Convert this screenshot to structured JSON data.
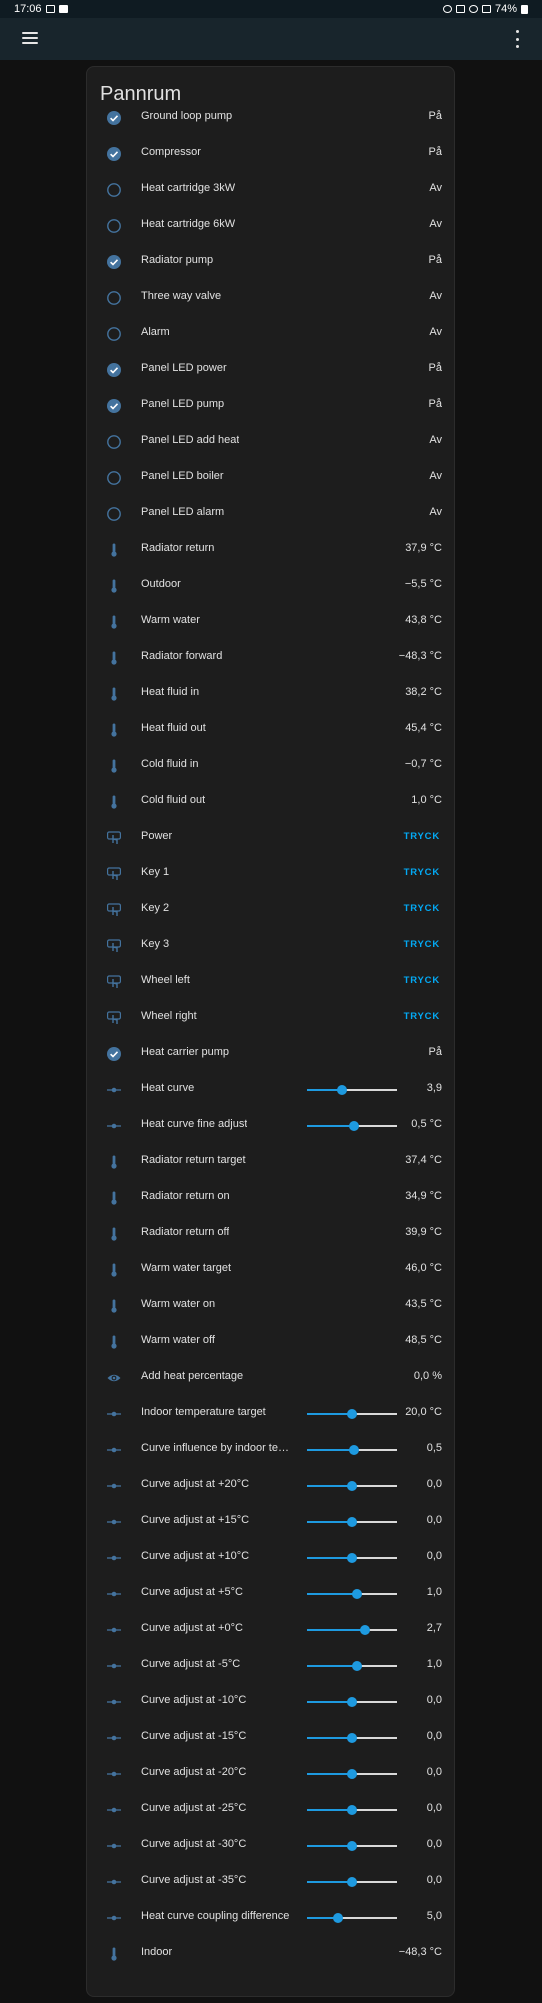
{
  "status": {
    "time": "17:06",
    "battery": "74%"
  },
  "card": {
    "title": "Pannrum"
  },
  "colors": {
    "accent": "#03a9f4",
    "icon": "#44739e",
    "background": "#111111",
    "card": "#1d1d1d"
  },
  "rows": [
    {
      "type": "toggle",
      "icon": "check-circle-icon",
      "on": true,
      "name": "Ground loop pump",
      "value": "På"
    },
    {
      "type": "toggle",
      "icon": "check-circle-icon",
      "on": true,
      "name": "Compressor",
      "value": "På"
    },
    {
      "type": "toggle",
      "icon": "circle-outline-icon",
      "on": false,
      "name": "Heat cartridge 3kW",
      "value": "Av"
    },
    {
      "type": "toggle",
      "icon": "circle-outline-icon",
      "on": false,
      "name": "Heat cartridge 6kW",
      "value": "Av"
    },
    {
      "type": "toggle",
      "icon": "check-circle-icon",
      "on": true,
      "name": "Radiator pump",
      "value": "På"
    },
    {
      "type": "toggle",
      "icon": "circle-outline-icon",
      "on": false,
      "name": "Three way valve",
      "value": "Av"
    },
    {
      "type": "toggle",
      "icon": "circle-outline-icon",
      "on": false,
      "name": "Alarm",
      "value": "Av"
    },
    {
      "type": "toggle",
      "icon": "check-circle-icon",
      "on": true,
      "name": "Panel LED power",
      "value": "På"
    },
    {
      "type": "toggle",
      "icon": "check-circle-icon",
      "on": true,
      "name": "Panel LED pump",
      "value": "På"
    },
    {
      "type": "toggle",
      "icon": "circle-outline-icon",
      "on": false,
      "name": "Panel LED add heat",
      "value": "Av"
    },
    {
      "type": "toggle",
      "icon": "circle-outline-icon",
      "on": false,
      "name": "Panel LED boiler",
      "value": "Av"
    },
    {
      "type": "toggle",
      "icon": "circle-outline-icon",
      "on": false,
      "name": "Panel LED alarm",
      "value": "Av"
    },
    {
      "type": "sensor",
      "icon": "thermometer-icon",
      "name": "Radiator return",
      "value": "37,9 °C"
    },
    {
      "type": "sensor",
      "icon": "thermometer-icon",
      "name": "Outdoor",
      "value": "−5,5 °C"
    },
    {
      "type": "sensor",
      "icon": "thermometer-icon",
      "name": "Warm water",
      "value": "43,8 °C"
    },
    {
      "type": "sensor",
      "icon": "thermometer-icon",
      "name": "Radiator forward",
      "value": "−48,3 °C"
    },
    {
      "type": "sensor",
      "icon": "thermometer-icon",
      "name": "Heat fluid in",
      "value": "38,2 °C"
    },
    {
      "type": "sensor",
      "icon": "thermometer-icon",
      "name": "Heat fluid out",
      "value": "45,4 °C"
    },
    {
      "type": "sensor",
      "icon": "thermometer-icon",
      "name": "Cold fluid in",
      "value": "−0,7 °C"
    },
    {
      "type": "sensor",
      "icon": "thermometer-icon",
      "name": "Cold fluid out",
      "value": "1,0 °C"
    },
    {
      "type": "button",
      "icon": "gesture-tap-button-icon",
      "name": "Power",
      "value": "TRYCK"
    },
    {
      "type": "button",
      "icon": "gesture-tap-button-icon",
      "name": "Key 1",
      "value": "TRYCK"
    },
    {
      "type": "button",
      "icon": "gesture-tap-button-icon",
      "name": "Key 2",
      "value": "TRYCK"
    },
    {
      "type": "button",
      "icon": "gesture-tap-button-icon",
      "name": "Key 3",
      "value": "TRYCK"
    },
    {
      "type": "button",
      "icon": "gesture-tap-button-icon",
      "name": "Wheel left",
      "value": "TRYCK"
    },
    {
      "type": "button",
      "icon": "gesture-tap-button-icon",
      "name": "Wheel right",
      "value": "TRYCK"
    },
    {
      "type": "toggle",
      "icon": "check-circle-icon",
      "on": true,
      "name": "Heat carrier pump",
      "value": "På"
    },
    {
      "type": "slider",
      "icon": "ray-vertex-icon",
      "name": "Heat curve",
      "value": "3,9",
      "level": 0.39
    },
    {
      "type": "slider",
      "icon": "ray-vertex-icon",
      "name": "Heat curve fine adjust",
      "value": "0,5 °C",
      "level": 0.52
    },
    {
      "type": "sensor",
      "icon": "thermometer-icon",
      "name": "Radiator return target",
      "value": "37,4 °C"
    },
    {
      "type": "sensor",
      "icon": "thermometer-icon",
      "name": "Radiator return on",
      "value": "34,9 °C"
    },
    {
      "type": "sensor",
      "icon": "thermometer-icon",
      "name": "Radiator return off",
      "value": "39,9 °C"
    },
    {
      "type": "sensor",
      "icon": "thermometer-icon",
      "name": "Warm water target",
      "value": "46,0 °C"
    },
    {
      "type": "sensor",
      "icon": "thermometer-icon",
      "name": "Warm water on",
      "value": "43,5 °C"
    },
    {
      "type": "sensor",
      "icon": "thermometer-icon",
      "name": "Warm water off",
      "value": "48,5 °C"
    },
    {
      "type": "sensor",
      "icon": "eye-icon",
      "name": "Add heat percentage",
      "value": "0,0 %"
    },
    {
      "type": "slider",
      "icon": "ray-vertex-icon",
      "name": "Indoor temperature target",
      "value": "20,0 °C",
      "level": 0.5
    },
    {
      "type": "slider",
      "icon": "ray-vertex-icon",
      "name": "Curve influence by indoor tem...",
      "value": "0,5",
      "level": 0.52
    },
    {
      "type": "slider",
      "icon": "ray-vertex-icon",
      "name": "Curve adjust at +20°C",
      "value": "0,0",
      "level": 0.5
    },
    {
      "type": "slider",
      "icon": "ray-vertex-icon",
      "name": "Curve adjust at +15°C",
      "value": "0,0",
      "level": 0.5
    },
    {
      "type": "slider",
      "icon": "ray-vertex-icon",
      "name": "Curve adjust at +10°C",
      "value": "0,0",
      "level": 0.5
    },
    {
      "type": "slider",
      "icon": "ray-vertex-icon",
      "name": "Curve adjust at +5°C",
      "value": "1,0",
      "level": 0.55
    },
    {
      "type": "slider",
      "icon": "ray-vertex-icon",
      "name": "Curve adjust at +0°C",
      "value": "2,7",
      "level": 0.64
    },
    {
      "type": "slider",
      "icon": "ray-vertex-icon",
      "name": "Curve adjust at -5°C",
      "value": "1,0",
      "level": 0.55
    },
    {
      "type": "slider",
      "icon": "ray-vertex-icon",
      "name": "Curve adjust at -10°C",
      "value": "0,0",
      "level": 0.5
    },
    {
      "type": "slider",
      "icon": "ray-vertex-icon",
      "name": "Curve adjust at -15°C",
      "value": "0,0",
      "level": 0.5
    },
    {
      "type": "slider",
      "icon": "ray-vertex-icon",
      "name": "Curve adjust at -20°C",
      "value": "0,0",
      "level": 0.5
    },
    {
      "type": "slider",
      "icon": "ray-vertex-icon",
      "name": "Curve adjust at -25°C",
      "value": "0,0",
      "level": 0.5
    },
    {
      "type": "slider",
      "icon": "ray-vertex-icon",
      "name": "Curve adjust at -30°C",
      "value": "0,0",
      "level": 0.5
    },
    {
      "type": "slider",
      "icon": "ray-vertex-icon",
      "name": "Curve adjust at -35°C",
      "value": "0,0",
      "level": 0.5
    },
    {
      "type": "slider",
      "icon": "ray-vertex-icon",
      "name": "Heat curve coupling difference",
      "value": "5,0",
      "level": 0.34
    },
    {
      "type": "sensor",
      "icon": "thermometer-icon",
      "name": "Indoor",
      "value": "−48,3 °C"
    }
  ]
}
